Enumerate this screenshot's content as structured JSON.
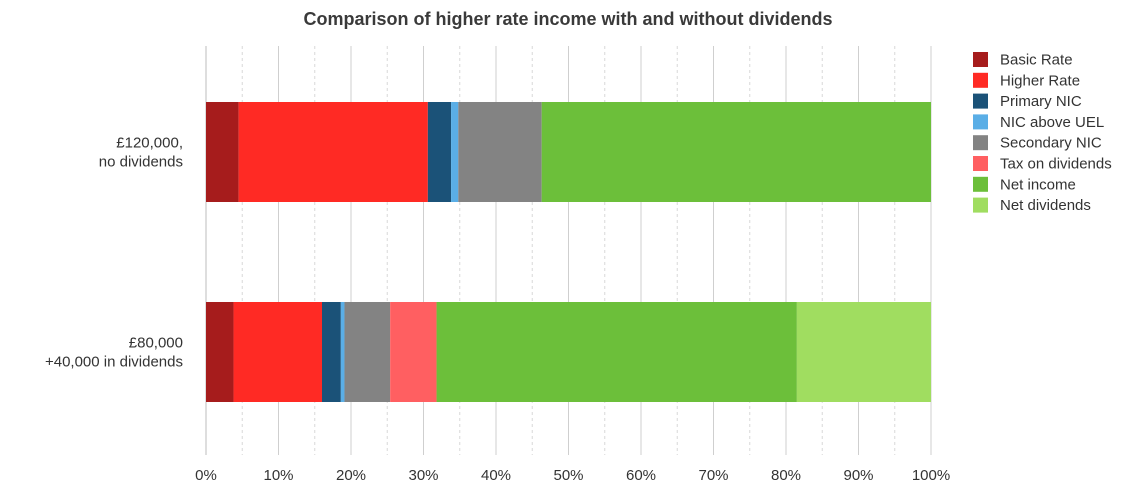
{
  "chart_data": {
    "type": "bar",
    "orientation": "horizontal",
    "stacked": true,
    "percent_scale": true,
    "title": "Comparison of higher rate income with and without dividends",
    "xlabel": "",
    "ylabel": "",
    "xlim": [
      0,
      100
    ],
    "x_ticks": [
      "0%",
      "10%",
      "20%",
      "30%",
      "40%",
      "50%",
      "60%",
      "70%",
      "80%",
      "90%",
      "100%"
    ],
    "categories": [
      [
        "£120,000,",
        "no dividends"
      ],
      [
        "£80,000",
        "+40,000 in dividends"
      ]
    ],
    "series": [
      {
        "name": "Basic Rate",
        "color": "#a61c1c",
        "values": [
          4.5,
          3.8
        ]
      },
      {
        "name": "Higher Rate",
        "color": "#ff2a24",
        "values": [
          26.1,
          12.2
        ]
      },
      {
        "name": "Primary NIC",
        "color": "#1b5278",
        "values": [
          3.2,
          2.6
        ]
      },
      {
        "name": "NIC above UEL",
        "color": "#5aaee6",
        "values": [
          1.0,
          0.5
        ]
      },
      {
        "name": "Secondary NIC",
        "color": "#838383",
        "values": [
          11.5,
          6.3
        ]
      },
      {
        "name": "Tax on dividends",
        "color": "#ff5f61",
        "values": [
          0,
          6.4
        ]
      },
      {
        "name": "Net income",
        "color": "#6cbf3a",
        "values": [
          53.7,
          49.7
        ]
      },
      {
        "name": "Net dividends",
        "color": "#a0dd60",
        "values": [
          0,
          18.5
        ]
      }
    ],
    "grid": true,
    "legend_position": "right"
  }
}
